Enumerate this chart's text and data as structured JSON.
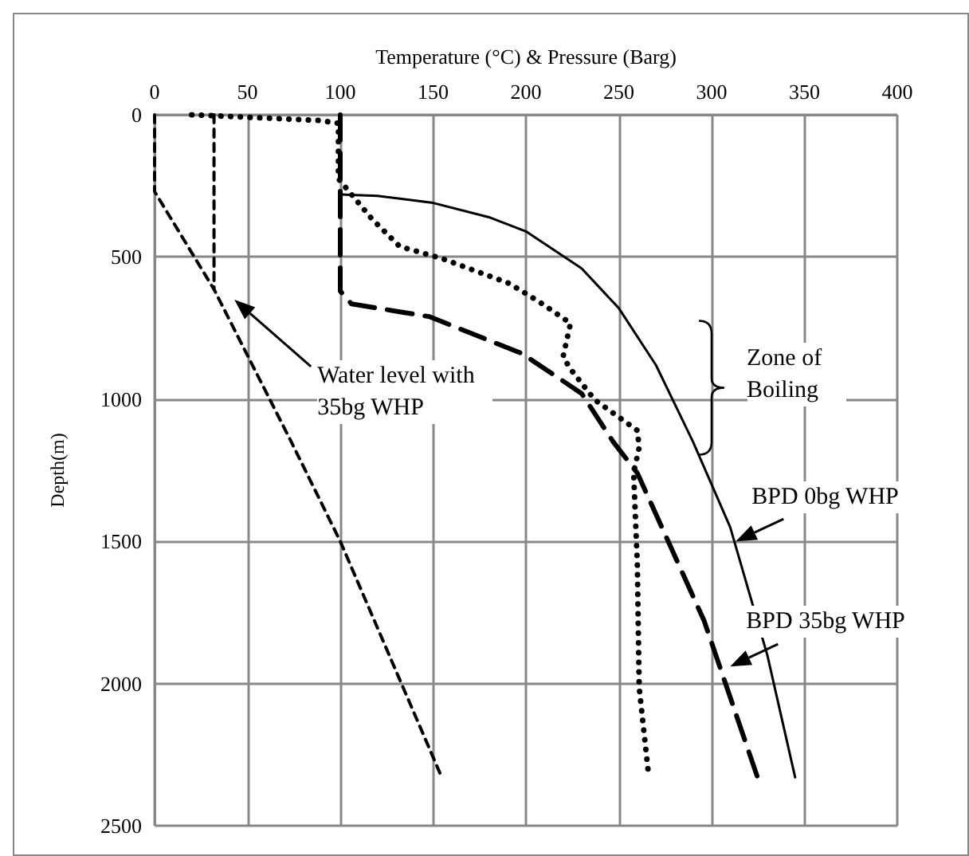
{
  "chart_data": {
    "type": "line",
    "xlabel": "Temperature (°C) & Pressure (Barg)",
    "ylabel": "Depth(m)",
    "xlim": [
      0,
      400
    ],
    "xticks": [
      0,
      50,
      100,
      150,
      200,
      250,
      300,
      350,
      400
    ],
    "ylim": [
      2500,
      0
    ],
    "yticks": [
      0,
      500,
      1000,
      1500,
      2000,
      2500
    ],
    "grid": true,
    "marker": "none",
    "series": [
      {
        "color": "#000000",
        "line_style": "solid",
        "x": [
          100,
          120,
          150,
          180,
          200,
          230,
          250,
          270,
          290,
          310,
          330,
          345
        ],
        "values": [
          280,
          285,
          310,
          360,
          410,
          540,
          680,
          880,
          1150,
          1450,
          1900,
          2330
        ]
      },
      {
        "color": "#000000",
        "line_style": "dashed",
        "x": [
          100,
          100,
          106,
          148,
          198,
          230,
          247,
          260,
          296,
          325
        ],
        "values": [
          0,
          620,
          665,
          710,
          840,
          980,
          1150,
          1260,
          1780,
          2335
        ]
      },
      {
        "color": "#000000",
        "line_style": "dotted",
        "x": [
          20,
          89,
          99,
          99,
          117,
          132,
          155,
          191,
          207,
          224,
          220,
          224,
          237,
          260,
          261,
          258,
          260,
          261,
          266
        ],
        "values": [
          0,
          20,
          30,
          225,
          366,
          463,
          506,
          593,
          657,
          733,
          851,
          894,
          1002,
          1110,
          1170,
          1258,
          1582,
          2015,
          2318
        ]
      },
      {
        "color": "#000000",
        "line_style": "dashed",
        "x": [
          0,
          0,
          32,
          73,
          100,
          155
        ],
        "values": [
          0,
          270,
          614,
          1142,
          1500,
          2335
        ]
      },
      {
        "color": "#000000",
        "line_style": "dashed",
        "x": [
          32,
          32
        ],
        "values": [
          0,
          614
        ]
      }
    ],
    "annotations": [
      "Water level with 35bg WHP",
      "Zone of Boiling",
      {
        "text": "BPD 0bg WHP",
        "x": 313,
        "y": 1500
      },
      {
        "text": "BPD 35bg WHP",
        "x": 310,
        "y": 1940
      }
    ]
  }
}
